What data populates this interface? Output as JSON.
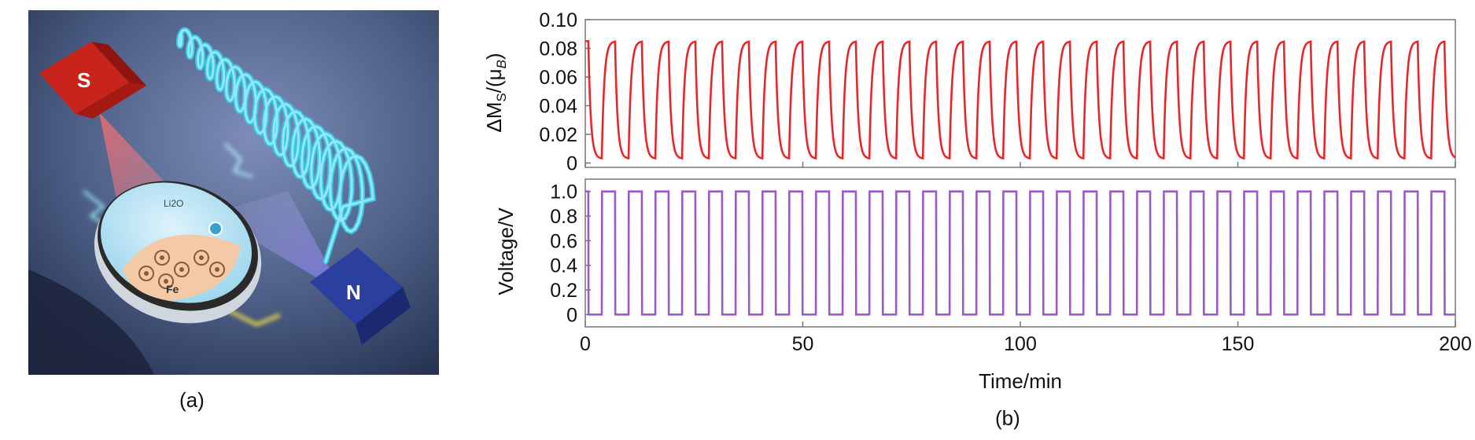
{
  "captions": {
    "panel_a": "(a)",
    "panel_b": "(b)"
  },
  "illustration": {
    "magnet_s_label": "S",
    "magnet_n_label": "N",
    "disc_top_label": "Li2O",
    "disc_bottom_label": "Fe",
    "colors": {
      "magnet_s": "#c8241c",
      "magnet_n": "#2b3f9e",
      "coil": "#3cc7e0",
      "background": "#4d5f86"
    }
  },
  "chart_data": [
    {
      "type": "line",
      "panel": "top",
      "ylabel_main": "ΔM",
      "ylabel_sub": "S",
      "ylabel_rest": "/(μ",
      "ylabel_sub2": "B",
      "ylabel_end": ")",
      "yticks": [
        "0.10",
        "0.08",
        "0.06",
        "0.04",
        "0.02",
        "0"
      ],
      "ylim": [
        -0.003,
        0.1
      ],
      "xlim": [
        0,
        200
      ],
      "series": [
        {
          "color": "#e8262a",
          "shape": "square-wave-with-exponential-relaxation",
          "period_min": 6.15,
          "high_value": 0.085,
          "low_value": 0.003,
          "cycles": 32.5
        }
      ],
      "grid": false
    },
    {
      "type": "line",
      "panel": "bottom",
      "ylabel": "Voltage/V",
      "yticks": [
        "1.0",
        "0.8",
        "0.6",
        "0.4",
        "0.2",
        "0"
      ],
      "ylim": [
        -0.1,
        1.1
      ],
      "xlim": [
        0,
        200
      ],
      "xticks": [
        "0",
        "50",
        "100",
        "150",
        "200"
      ],
      "xlabel": "Time/min",
      "series": [
        {
          "color": "#9b59c6",
          "shape": "square-wave",
          "period_min": 6.15,
          "high_value": 1.0,
          "low_value": 0.0,
          "cycles": 32.5
        }
      ],
      "grid": false
    }
  ]
}
